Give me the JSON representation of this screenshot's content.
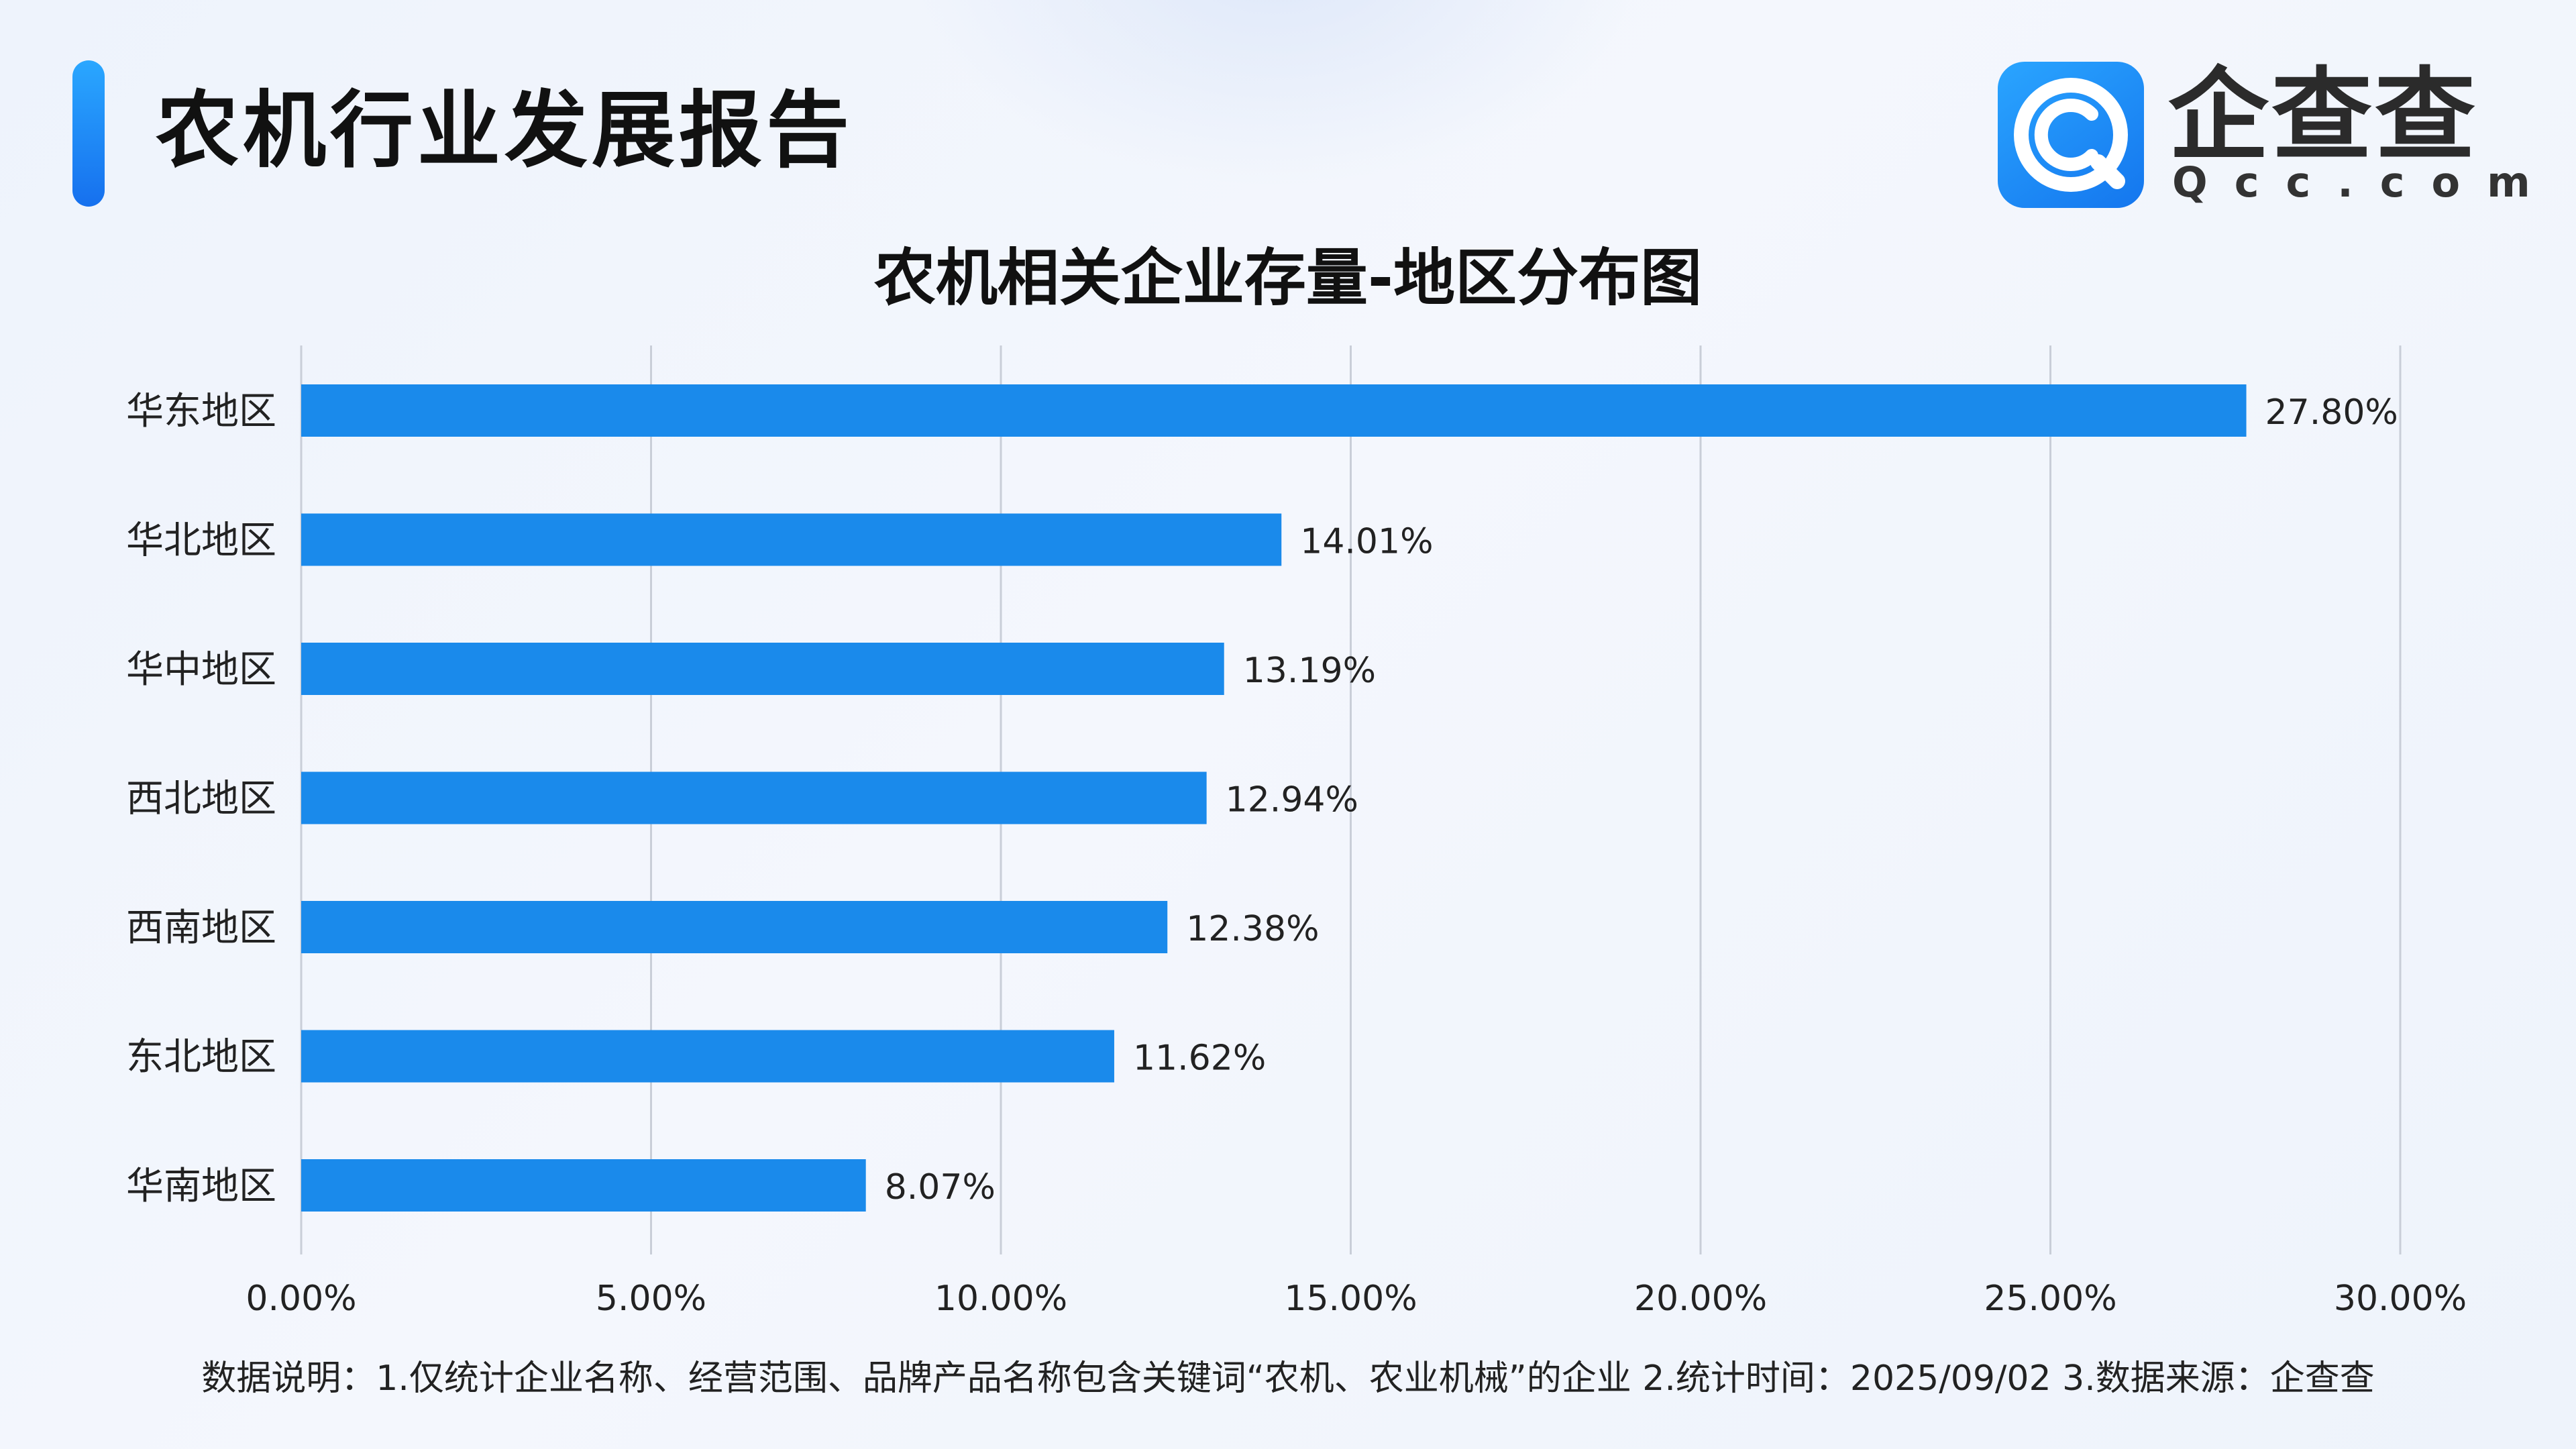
{
  "header": {
    "title": "农机行业发展报告",
    "logo_name": "企查查",
    "logo_sub": "Qcc.com"
  },
  "colors": {
    "bar": "#1a8aeb",
    "grid": "#c9ced8",
    "accent": "#1a8aeb"
  },
  "icons": {
    "logo": "qcc-logo-icon"
  },
  "chart_data": {
    "type": "bar",
    "orientation": "horizontal",
    "title": "农机相关企业存量-地区分布图",
    "categories": [
      "华东地区",
      "华北地区",
      "华中地区",
      "西北地区",
      "西南地区",
      "东北地区",
      "华南地区"
    ],
    "values": [
      27.8,
      14.01,
      13.19,
      12.94,
      12.38,
      11.62,
      8.07
    ],
    "data_labels": [
      "27.80%",
      "14.01%",
      "13.19%",
      "12.94%",
      "12.38%",
      "11.62%",
      "8.07%"
    ],
    "x_ticks": [
      0,
      5,
      10,
      15,
      20,
      25,
      30
    ],
    "x_tick_labels": [
      "0.00%",
      "5.00%",
      "10.00%",
      "15.00%",
      "20.00%",
      "25.00%",
      "30.00%"
    ],
    "xlim": [
      0,
      30
    ],
    "grid": true,
    "legend": "none"
  },
  "footnote": "数据说明：1.仅统计企业名称、经营范围、品牌产品名称包含关键词“农机、农业机械”的企业   2.统计时间：2025/09/02    3.数据来源：企查查"
}
